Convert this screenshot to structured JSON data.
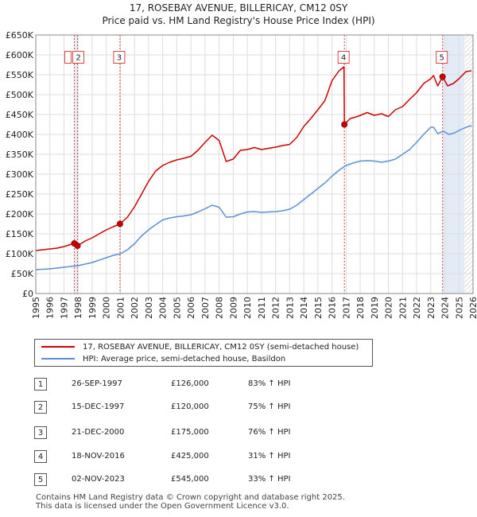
{
  "chart_data": {
    "type": "line",
    "title": "17, ROSEBAY AVENUE, BILLERICAY, CM12 0SY",
    "subtitle": "Price paid vs. HM Land Registry's House Price Index (HPI)",
    "xlim": [
      1995,
      2026
    ],
    "ylim": [
      0,
      650000
    ],
    "y_ticks": [
      0,
      50000,
      100000,
      150000,
      200000,
      250000,
      300000,
      350000,
      400000,
      450000,
      500000,
      550000,
      600000,
      650000
    ],
    "y_tick_labels": [
      "£0",
      "£50K",
      "£100K",
      "£150K",
      "£200K",
      "£250K",
      "£300K",
      "£350K",
      "£400K",
      "£450K",
      "£500K",
      "£550K",
      "£600K",
      "£650K"
    ],
    "x_ticks": [
      1995,
      1996,
      1997,
      1998,
      1999,
      2000,
      2001,
      2002,
      2003,
      2004,
      2005,
      2006,
      2007,
      2008,
      2009,
      2010,
      2011,
      2012,
      2013,
      2014,
      2015,
      2016,
      2017,
      2018,
      2019,
      2020,
      2021,
      2022,
      2023,
      2024,
      2025,
      2026
    ],
    "x_tick_labels": [
      "1995",
      "1996",
      "1997",
      "1998",
      "1999",
      "2000",
      "2001",
      "2002",
      "2003",
      "2004",
      "2005",
      "2006",
      "2007",
      "2008",
      "2009",
      "2010",
      "2011",
      "2012",
      "2013",
      "2014",
      "2015",
      "2016",
      "2017",
      "2018",
      "2019",
      "2020",
      "2021",
      "2022",
      "2023",
      "2024",
      "2025",
      "2026"
    ],
    "grid": true,
    "shaded_periods": [
      [
        1997.73,
        1997.96
      ],
      [
        2023.84,
        2025.4
      ]
    ],
    "hatched_from": 2025.4,
    "series": [
      {
        "name": "17, ROSEBAY AVENUE, BILLERICAY, CM12 0SY (semi-detached house)",
        "color": "#cc0000",
        "x": [
          1995,
          1995.5,
          1996,
          1996.5,
          1997,
          1997.73,
          1997.96,
          1998.5,
          1999,
          1999.5,
          2000,
          2000.5,
          2000.97,
          2001.5,
          2002,
          2002.5,
          2003,
          2003.5,
          2004,
          2004.5,
          2005,
          2005.5,
          2006,
          2006.5,
          2007,
          2007.5,
          2008,
          2008.5,
          2009,
          2009.5,
          2010,
          2010.5,
          2011,
          2011.5,
          2012,
          2012.5,
          2013,
          2013.5,
          2014,
          2014.5,
          2015,
          2015.5,
          2016,
          2016.5,
          2016.85,
          2016.88,
          2017.3,
          2017.8,
          2018.5,
          2019,
          2019.5,
          2020,
          2020.5,
          2021,
          2021.5,
          2022,
          2022.5,
          2023,
          2023.2,
          2023.5,
          2023.84,
          2024.2,
          2024.6,
          2025,
          2025.5,
          2025.9
        ],
        "values": [
          108000,
          110000,
          112000,
          114000,
          118000,
          126000,
          120000,
          132000,
          140000,
          150000,
          160000,
          168000,
          175000,
          192000,
          218000,
          250000,
          282000,
          308000,
          322000,
          330000,
          336000,
          340000,
          345000,
          360000,
          380000,
          398000,
          385000,
          332000,
          338000,
          360000,
          362000,
          367000,
          362000,
          365000,
          368000,
          372000,
          375000,
          392000,
          420000,
          440000,
          462000,
          485000,
          535000,
          560000,
          570000,
          425000,
          440000,
          445000,
          455000,
          448000,
          452000,
          445000,
          462000,
          470000,
          488000,
          505000,
          528000,
          540000,
          548000,
          522000,
          545000,
          522000,
          528000,
          540000,
          558000,
          560000
        ]
      },
      {
        "name": "HPI: Average price, semi-detached house, Basildon",
        "color": "#5b8fd6",
        "x": [
          1995,
          1995.5,
          1996,
          1996.5,
          1997,
          1997.5,
          1998,
          1998.5,
          1999,
          1999.5,
          2000,
          2000.5,
          2001,
          2001.5,
          2002,
          2002.5,
          2003,
          2003.5,
          2004,
          2004.5,
          2005,
          2005.5,
          2006,
          2006.5,
          2007,
          2007.5,
          2008,
          2008.5,
          2009,
          2009.5,
          2010,
          2010.5,
          2011,
          2011.5,
          2012,
          2012.5,
          2013,
          2013.5,
          2014,
          2014.5,
          2015,
          2015.5,
          2016,
          2016.5,
          2017,
          2017.5,
          2018,
          2018.5,
          2019,
          2019.5,
          2020,
          2020.5,
          2021,
          2021.5,
          2022,
          2022.5,
          2023,
          2023.2,
          2023.5,
          2023.9,
          2024.3,
          2024.7,
          2025,
          2025.5,
          2025.9
        ],
        "values": [
          60000,
          61000,
          62000,
          64000,
          66000,
          68000,
          70000,
          74000,
          78000,
          84000,
          90000,
          96000,
          100000,
          110000,
          125000,
          145000,
          160000,
          173000,
          185000,
          190000,
          193000,
          195000,
          198000,
          205000,
          213000,
          222000,
          217000,
          192000,
          193000,
          200000,
          205000,
          206000,
          204000,
          205000,
          206000,
          208000,
          212000,
          222000,
          236000,
          250000,
          264000,
          278000,
          295000,
          310000,
          322000,
          328000,
          333000,
          334000,
          333000,
          330000,
          333000,
          338000,
          350000,
          362000,
          380000,
          400000,
          418000,
          418000,
          402000,
          408000,
          400000,
          404000,
          410000,
          418000,
          422000
        ]
      }
    ],
    "sale_markers": [
      {
        "n": "1",
        "x": 1997.73,
        "value": 126000
      },
      {
        "n": "2",
        "x": 1997.96,
        "value": 120000
      },
      {
        "n": "3",
        "x": 2000.97,
        "value": 175000
      },
      {
        "n": "4",
        "x": 2016.88,
        "value": 425000
      },
      {
        "n": "5",
        "x": 2023.84,
        "value": 545000
      }
    ],
    "event_boxes": [
      {
        "label": "2",
        "x": 1997.96
      },
      {
        "label": "3",
        "x": 2000.97
      },
      {
        "label": "4",
        "x": 2016.88
      },
      {
        "label": "5",
        "x": 2023.84
      }
    ],
    "box_value": 595000,
    "legend_position": "below",
    "legend": [
      {
        "label": "17, ROSEBAY AVENUE, BILLERICAY, CM12 0SY (semi-detached house)",
        "color": "#cc0000"
      },
      {
        "label": "HPI: Average price, semi-detached house, Basildon",
        "color": "#5b8fd6"
      }
    ]
  },
  "table": {
    "rows": [
      {
        "n": "1",
        "date": "26-SEP-1997",
        "price": "£126,000",
        "hpi": "83% ↑ HPI"
      },
      {
        "n": "2",
        "date": "15-DEC-1997",
        "price": "£120,000",
        "hpi": "75% ↑ HPI"
      },
      {
        "n": "3",
        "date": "21-DEC-2000",
        "price": "£175,000",
        "hpi": "76% ↑ HPI"
      },
      {
        "n": "4",
        "date": "18-NOV-2016",
        "price": "£425,000",
        "hpi": "31% ↑ HPI"
      },
      {
        "n": "5",
        "date": "02-NOV-2023",
        "price": "£545,000",
        "hpi": "33% ↑ HPI"
      }
    ]
  },
  "footer": {
    "line1": "Contains HM Land Registry data © Crown copyright and database right 2025.",
    "line2": "This data is licensed under the Open Government Licence v3.0."
  }
}
